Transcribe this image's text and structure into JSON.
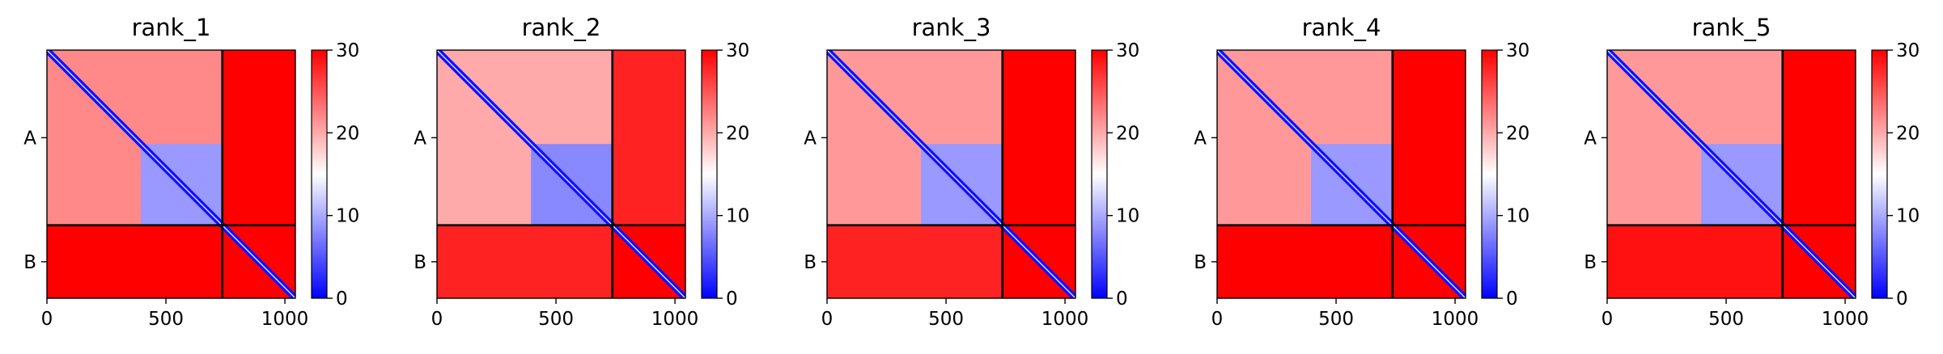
{
  "chart_data": [
    {
      "type": "heatmap",
      "title": "rank_1",
      "xticks": [
        0,
        500,
        1000
      ],
      "xlim": [
        0,
        1044
      ],
      "ylim": [
        1044,
        0
      ],
      "chain_labels": [
        "A",
        "B"
      ],
      "chain_boundary": 737,
      "colorbar": {
        "range": [
          0,
          30
        ],
        "ticks": [
          0,
          10,
          20,
          30
        ],
        "colormap": "bwr"
      },
      "blocks": [
        {
          "x": [
            0,
            1044
          ],
          "y": [
            0,
            1044
          ],
          "value": 30
        },
        {
          "x": [
            0,
            737
          ],
          "y": [
            0,
            737
          ],
          "value": 22
        },
        {
          "x": [
            395,
            737
          ],
          "y": [
            395,
            737
          ],
          "value": 9
        },
        {
          "x": [
            0,
            737
          ],
          "y": [
            737,
            1044
          ],
          "value": 30
        },
        {
          "x": [
            737,
            1044
          ],
          "y": [
            0,
            737
          ],
          "value": 30
        }
      ]
    },
    {
      "type": "heatmap",
      "title": "rank_2",
      "xticks": [
        0,
        500,
        1000
      ],
      "xlim": [
        0,
        1044
      ],
      "ylim": [
        1044,
        0
      ],
      "chain_labels": [
        "A",
        "B"
      ],
      "chain_boundary": 737,
      "colorbar": {
        "range": [
          0,
          30
        ],
        "ticks": [
          0,
          10,
          20,
          30
        ],
        "colormap": "bwr"
      },
      "blocks": [
        {
          "x": [
            0,
            1044
          ],
          "y": [
            0,
            1044
          ],
          "value": 30
        },
        {
          "x": [
            0,
            737
          ],
          "y": [
            0,
            737
          ],
          "value": 20
        },
        {
          "x": [
            395,
            737
          ],
          "y": [
            395,
            737
          ],
          "value": 8
        },
        {
          "x": [
            0,
            737
          ],
          "y": [
            737,
            1044
          ],
          "value": 28
        },
        {
          "x": [
            737,
            1044
          ],
          "y": [
            0,
            737
          ],
          "value": 28
        }
      ]
    },
    {
      "type": "heatmap",
      "title": "rank_3",
      "xticks": [
        0,
        500,
        1000
      ],
      "xlim": [
        0,
        1044
      ],
      "ylim": [
        1044,
        0
      ],
      "chain_labels": [
        "A",
        "B"
      ],
      "chain_boundary": 737,
      "colorbar": {
        "range": [
          0,
          30
        ],
        "ticks": [
          0,
          10,
          20,
          30
        ],
        "colormap": "bwr"
      },
      "blocks": [
        {
          "x": [
            0,
            1044
          ],
          "y": [
            0,
            1044
          ],
          "value": 30
        },
        {
          "x": [
            0,
            737
          ],
          "y": [
            0,
            737
          ],
          "value": 21
        },
        {
          "x": [
            395,
            737
          ],
          "y": [
            395,
            737
          ],
          "value": 9
        },
        {
          "x": [
            0,
            737
          ],
          "y": [
            737,
            1044
          ],
          "value": 28
        },
        {
          "x": [
            737,
            1044
          ],
          "y": [
            0,
            737
          ],
          "value": 30
        }
      ]
    },
    {
      "type": "heatmap",
      "title": "rank_4",
      "xticks": [
        0,
        500,
        1000
      ],
      "xlim": [
        0,
        1044
      ],
      "ylim": [
        1044,
        0
      ],
      "chain_labels": [
        "A",
        "B"
      ],
      "chain_boundary": 737,
      "colorbar": {
        "range": [
          0,
          30
        ],
        "ticks": [
          0,
          10,
          20,
          30
        ],
        "colormap": "bwr"
      },
      "blocks": [
        {
          "x": [
            0,
            1044
          ],
          "y": [
            0,
            1044
          ],
          "value": 30
        },
        {
          "x": [
            0,
            737
          ],
          "y": [
            0,
            737
          ],
          "value": 21
        },
        {
          "x": [
            395,
            737
          ],
          "y": [
            395,
            737
          ],
          "value": 9
        },
        {
          "x": [
            0,
            737
          ],
          "y": [
            737,
            1044
          ],
          "value": 30
        },
        {
          "x": [
            737,
            1044
          ],
          "y": [
            0,
            737
          ],
          "value": 30
        }
      ]
    },
    {
      "type": "heatmap",
      "title": "rank_5",
      "xticks": [
        0,
        500,
        1000
      ],
      "xlim": [
        0,
        1044
      ],
      "ylim": [
        1044,
        0
      ],
      "chain_labels": [
        "A",
        "B"
      ],
      "chain_boundary": 737,
      "colorbar": {
        "range": [
          0,
          30
        ],
        "ticks": [
          0,
          10,
          20,
          30
        ],
        "colormap": "bwr"
      },
      "blocks": [
        {
          "x": [
            0,
            1044
          ],
          "y": [
            0,
            1044
          ],
          "value": 30
        },
        {
          "x": [
            0,
            737
          ],
          "y": [
            0,
            737
          ],
          "value": 21
        },
        {
          "x": [
            395,
            737
          ],
          "y": [
            395,
            737
          ],
          "value": 9
        },
        {
          "x": [
            0,
            737
          ],
          "y": [
            737,
            1044
          ],
          "value": 29
        },
        {
          "x": [
            737,
            1044
          ],
          "y": [
            0,
            737
          ],
          "value": 30
        }
      ]
    }
  ]
}
